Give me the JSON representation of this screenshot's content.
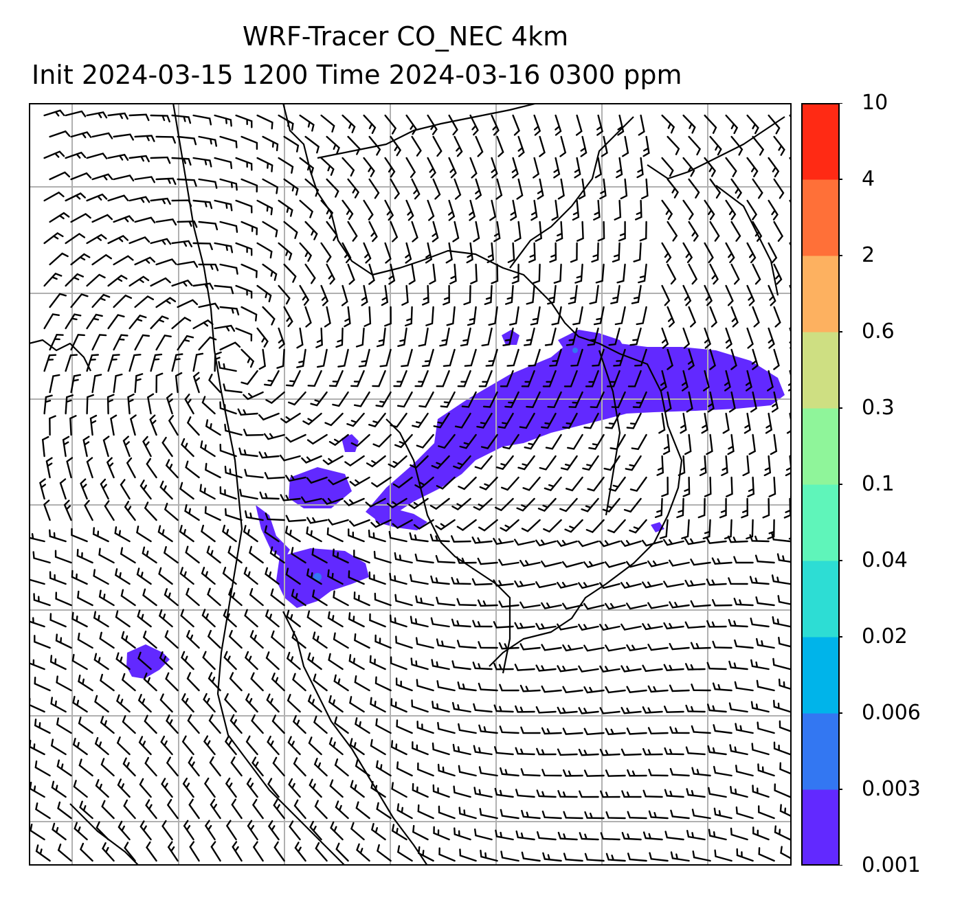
{
  "title": {
    "line1": "WRF-Tracer CO_NEC 4km",
    "line2": "Init 2024-03-15 1200 Time 2024-03-16 0300 ppm"
  },
  "colorbar": {
    "levels": [
      "0.001",
      "0.003",
      "0.006",
      "0.02",
      "0.04",
      "0.1",
      "0.3",
      "0.6",
      "2",
      "4",
      "10"
    ],
    "colors": [
      "#6229ff",
      "#3377f2",
      "#00b4ea",
      "#2dddd4",
      "#5ff5ba",
      "#8ff59a",
      "#cedf82",
      "#fdb160",
      "#ff7038",
      "#ff2a14"
    ]
  },
  "map": {
    "tracer_color": "#6229ff",
    "barb_color": "#000000",
    "grid_color": "#b0b0b0",
    "coast_color": "#000000"
  }
}
